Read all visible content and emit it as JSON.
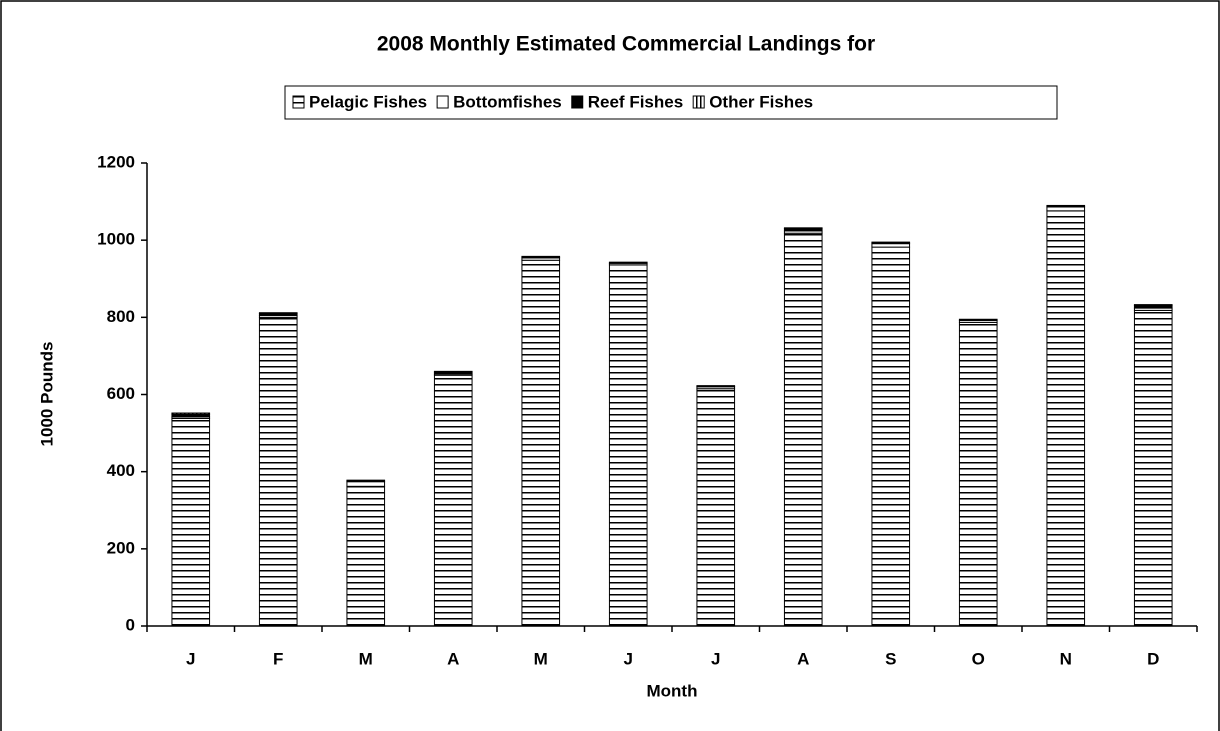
{
  "chart_data": {
    "type": "stacked_bar",
    "title": "2008 Monthly Estimated Commercial Landings for",
    "x_label": "Month",
    "y_label": "1000 Pounds",
    "categories": [
      "J",
      "F",
      "M",
      "A",
      "M",
      "J",
      "J",
      "A",
      "S",
      "O",
      "N",
      "D"
    ],
    "series": [
      {
        "name": "Pelagic Fishes",
        "color": "#000000",
        "pattern": "horizontal",
        "values": [
          538,
          800,
          362,
          650,
          948,
          936,
          615,
          1018,
          982,
          787,
          1076,
          818
        ]
      },
      {
        "name": "Bottomfishes",
        "color": "#ffffff",
        "pattern": "solid",
        "values": [
          4,
          5,
          12,
          3,
          6,
          4,
          5,
          6,
          9,
          5,
          10,
          6
        ]
      },
      {
        "name": "Reef Fishes",
        "color": "#000000",
        "pattern": "solid",
        "values": [
          7,
          5,
          2,
          5,
          2,
          1,
          1,
          6,
          2,
          1,
          2,
          7
        ]
      },
      {
        "name": "Other Fishes",
        "color": "#000000",
        "pattern": "vertical",
        "values": [
          3,
          2,
          2,
          2,
          2,
          2,
          2,
          2,
          2,
          2,
          2,
          2
        ]
      }
    ],
    "ylim": [
      0,
      1200
    ],
    "yticks": [
      0,
      200,
      400,
      600,
      800,
      1000,
      1200
    ],
    "grid": false,
    "legend": "top"
  }
}
